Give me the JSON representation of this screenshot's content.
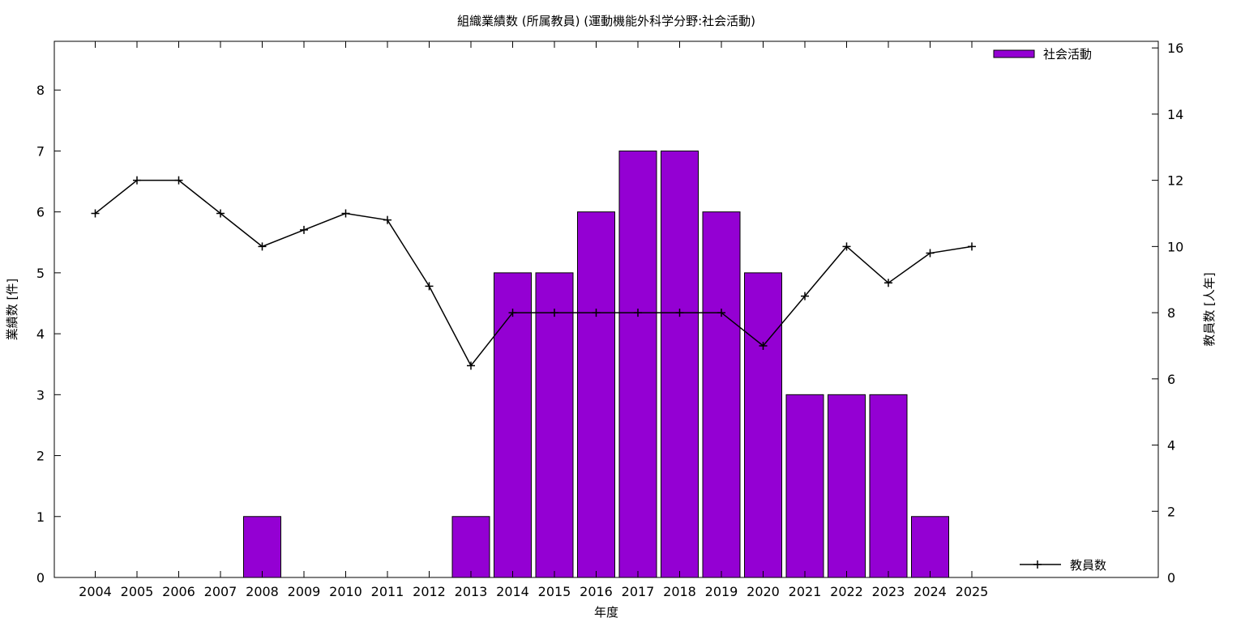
{
  "chart_data": {
    "type": "bar",
    "title": "組織業績数 (所属教員) (運動機能外科学分野:社会活動)",
    "xlabel": "年度",
    "ylabel": "業績数 [件]",
    "y2label": "教員数 [人年]",
    "categories": [
      "2004",
      "2005",
      "2006",
      "2007",
      "2008",
      "2009",
      "2010",
      "2011",
      "2012",
      "2013",
      "2014",
      "2015",
      "2016",
      "2017",
      "2018",
      "2019",
      "2020",
      "2021",
      "2022",
      "2023",
      "2024",
      "2025"
    ],
    "ylim": [
      0,
      8.8
    ],
    "y2lim": [
      0,
      16.2
    ],
    "yticks": [
      0,
      1,
      2,
      3,
      4,
      5,
      6,
      7,
      8
    ],
    "y2ticks": [
      0,
      2,
      4,
      6,
      8,
      10,
      12,
      14,
      16
    ],
    "grid": false,
    "legend_placement": "top-right / bottom-right",
    "series": [
      {
        "name": "社会活動",
        "type": "bar",
        "axis": "left",
        "color": "#9400d3",
        "values": [
          0,
          0,
          0,
          0,
          1,
          0,
          0,
          0,
          0,
          1,
          5,
          5,
          6,
          7,
          7,
          6,
          5,
          3,
          3,
          3,
          1,
          0
        ]
      },
      {
        "name": "教員数",
        "type": "line",
        "axis": "right",
        "color": "#000000",
        "values": [
          11,
          12,
          12,
          11,
          10,
          10.5,
          11,
          10.8,
          8.8,
          6.4,
          8,
          8,
          8,
          8,
          8,
          8,
          7,
          8.5,
          10,
          8.9,
          9.8,
          10
        ]
      }
    ]
  }
}
